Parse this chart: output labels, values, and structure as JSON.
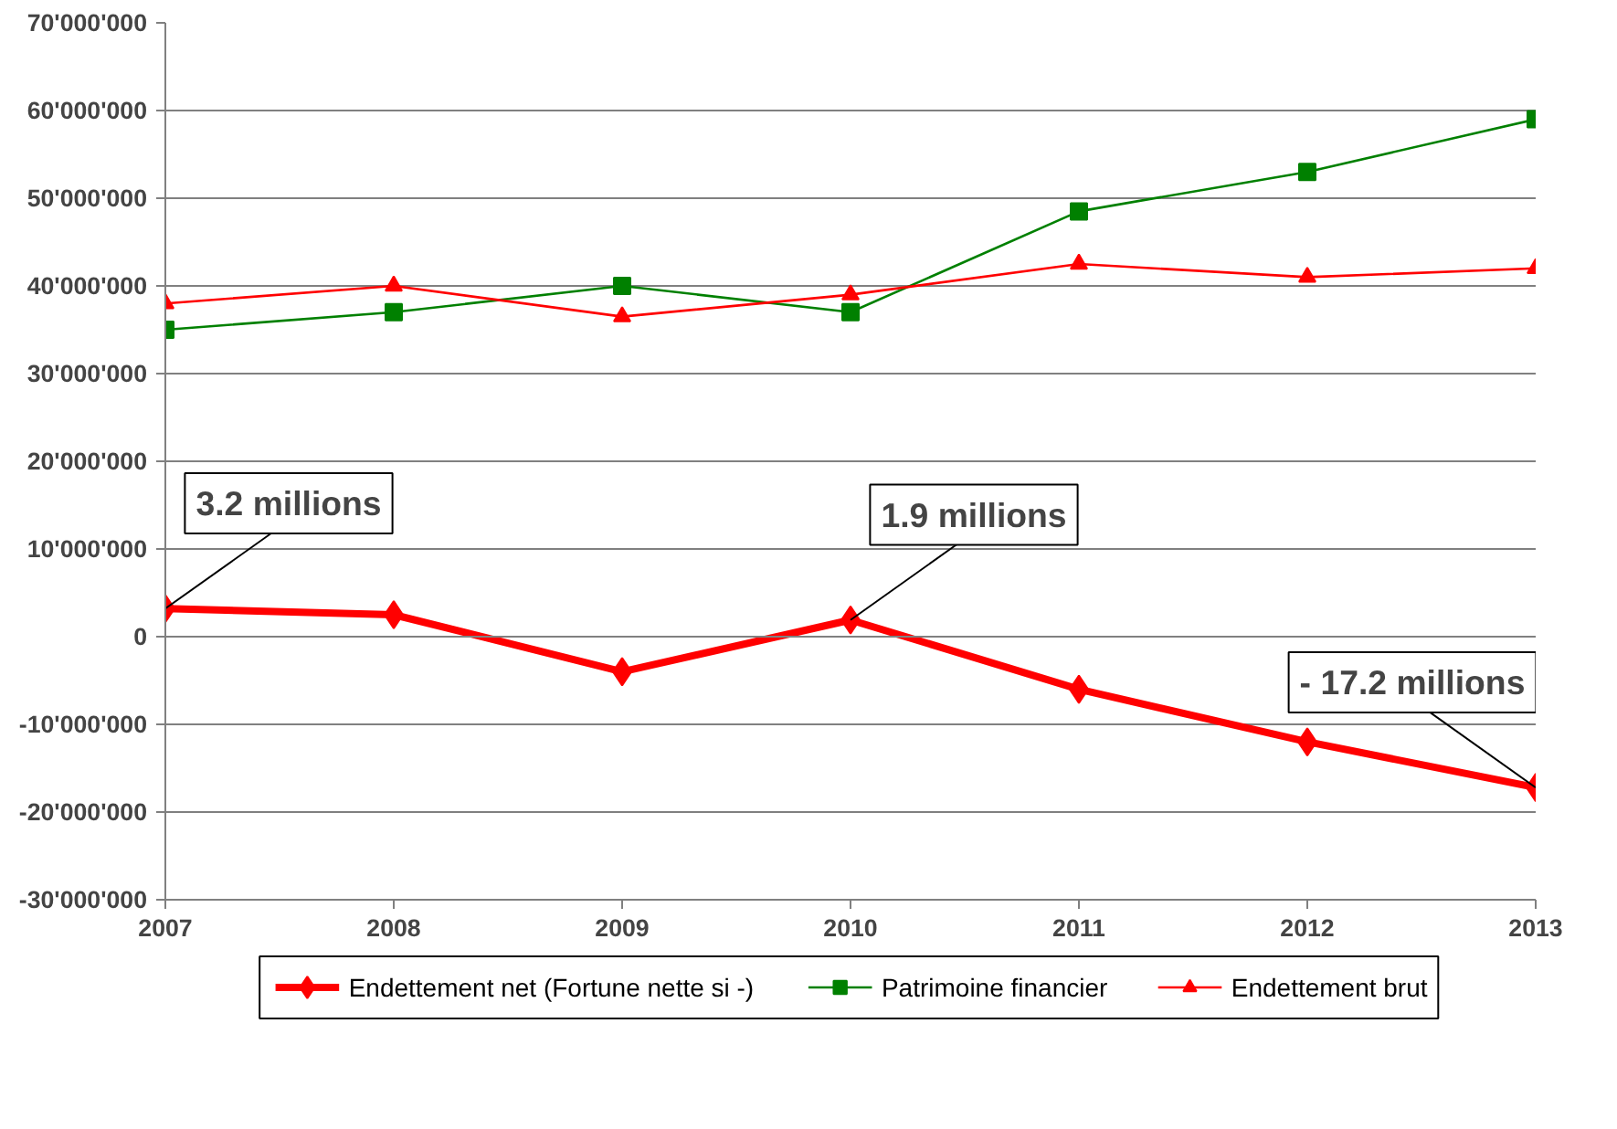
{
  "chart_data": {
    "type": "line",
    "x": [
      2007,
      2008,
      2009,
      2010,
      2011,
      2012,
      2013
    ],
    "series": [
      {
        "name": "Endettement net (Fortune nette si -)",
        "color": "#ff0000",
        "marker": "diamond",
        "values": [
          3200000,
          2500000,
          -4000000,
          1900000,
          -6000000,
          -12000000,
          -17200000
        ]
      },
      {
        "name": "Patrimoine financier",
        "color": "#008000",
        "marker": "square",
        "values": [
          35000000,
          37000000,
          40000000,
          37000000,
          48500000,
          53000000,
          59000000
        ]
      },
      {
        "name": "Endettement brut",
        "color": "#ff0000",
        "marker": "triangle",
        "values": [
          38000000,
          40000000,
          36500000,
          39000000,
          42500000,
          41000000,
          42000000
        ]
      }
    ],
    "xlim": [
      2007,
      2013
    ],
    "xticks": [
      2007,
      2008,
      2009,
      2010,
      2011,
      2012,
      2013
    ],
    "ylim": [
      -30000000,
      70000000
    ],
    "yticks": [
      {
        "value": -30000000,
        "label": "-30'000'000"
      },
      {
        "value": -20000000,
        "label": "-20'000'000"
      },
      {
        "value": -10000000,
        "label": "-10'000'000"
      },
      0,
      {
        "value": 10000000,
        "label": "10'000'000"
      },
      {
        "value": 20000000,
        "label": "20'000'000"
      },
      {
        "value": 30000000,
        "label": "30'000'000"
      },
      {
        "value": 40000000,
        "label": "40'000'000"
      },
      {
        "value": 50000000,
        "label": "50'000'000"
      },
      {
        "value": 60000000,
        "label": "60'000'000"
      },
      {
        "value": 70000000,
        "label": "70'000'000"
      }
    ],
    "annotations": [
      {
        "text": "3.2 millions",
        "x": 2007,
        "y": 3200000
      },
      {
        "text": "1.9 millions",
        "x": 2010,
        "y": 1900000
      },
      {
        "text": "- 17.2 millions",
        "x": 2013,
        "y": -17200000
      }
    ],
    "grid": "y",
    "legend": "bottom",
    "line_style": "solid"
  }
}
